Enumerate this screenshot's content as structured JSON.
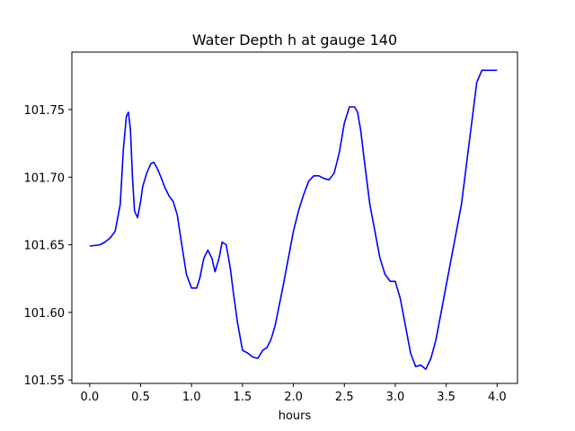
{
  "chart_data": {
    "type": "line",
    "title": "Water Depth h at gauge 140",
    "xlabel": "hours",
    "ylabel": "",
    "xlim": [
      -0.175,
      4.2
    ],
    "ylim": [
      101.5475,
      101.7925
    ],
    "xticks": [
      0.0,
      0.5,
      1.0,
      1.5,
      2.0,
      2.5,
      3.0,
      3.5,
      4.0
    ],
    "xtick_labels": [
      "0.0",
      "0.5",
      "1.0",
      "1.5",
      "2.0",
      "2.5",
      "3.0",
      "3.5",
      "4.0"
    ],
    "yticks": [
      101.55,
      101.6,
      101.65,
      101.7,
      101.75
    ],
    "ytick_labels": [
      "101.55",
      "101.60",
      "101.65",
      "101.70",
      "101.75"
    ],
    "grid": false,
    "legend": "none",
    "series": [
      {
        "color": "#0000ff",
        "x": [
          0.0,
          0.1,
          0.15,
          0.2,
          0.25,
          0.3,
          0.33,
          0.36,
          0.38,
          0.4,
          0.42,
          0.44,
          0.47,
          0.5,
          0.52,
          0.56,
          0.6,
          0.63,
          0.66,
          0.7,
          0.74,
          0.78,
          0.82,
          0.86,
          0.9,
          0.95,
          1.0,
          1.05,
          1.08,
          1.12,
          1.16,
          1.2,
          1.23,
          1.27,
          1.3,
          1.34,
          1.38,
          1.41,
          1.45,
          1.5,
          1.55,
          1.6,
          1.65,
          1.7,
          1.74,
          1.78,
          1.82,
          1.86,
          1.9,
          1.95,
          2.0,
          2.05,
          2.1,
          2.15,
          2.2,
          2.25,
          2.3,
          2.35,
          2.4,
          2.45,
          2.5,
          2.55,
          2.6,
          2.63,
          2.66,
          2.7,
          2.75,
          2.8,
          2.85,
          2.9,
          2.95,
          3.0,
          3.05,
          3.1,
          3.15,
          3.2,
          3.25,
          3.3,
          3.35,
          3.4,
          3.45,
          3.5,
          3.55,
          3.6,
          3.65,
          3.7,
          3.75,
          3.8,
          3.85,
          3.9,
          3.95,
          4.0
        ],
        "y": [
          101.649,
          101.65,
          101.652,
          101.655,
          101.66,
          101.68,
          101.72,
          101.745,
          101.748,
          101.735,
          101.7,
          101.675,
          101.67,
          101.682,
          101.693,
          101.703,
          101.71,
          101.711,
          101.707,
          101.7,
          101.692,
          101.686,
          101.682,
          101.672,
          101.652,
          101.628,
          101.618,
          101.618,
          101.625,
          101.64,
          101.646,
          101.64,
          101.63,
          101.64,
          101.652,
          101.65,
          101.633,
          101.615,
          101.593,
          101.572,
          101.57,
          101.567,
          101.566,
          101.572,
          101.574,
          101.58,
          101.59,
          101.605,
          101.62,
          101.64,
          101.66,
          101.675,
          101.687,
          101.697,
          101.701,
          101.701,
          101.699,
          101.698,
          101.703,
          101.718,
          101.74,
          101.752,
          101.752,
          101.748,
          101.735,
          101.71,
          101.68,
          101.66,
          101.64,
          101.628,
          101.623,
          101.623,
          101.61,
          101.59,
          101.57,
          101.56,
          101.561,
          101.558,
          101.566,
          101.58,
          101.6,
          101.62,
          101.64,
          101.66,
          101.68,
          101.71,
          101.74,
          101.77,
          101.779,
          101.779,
          101.779,
          101.779
        ]
      }
    ]
  }
}
